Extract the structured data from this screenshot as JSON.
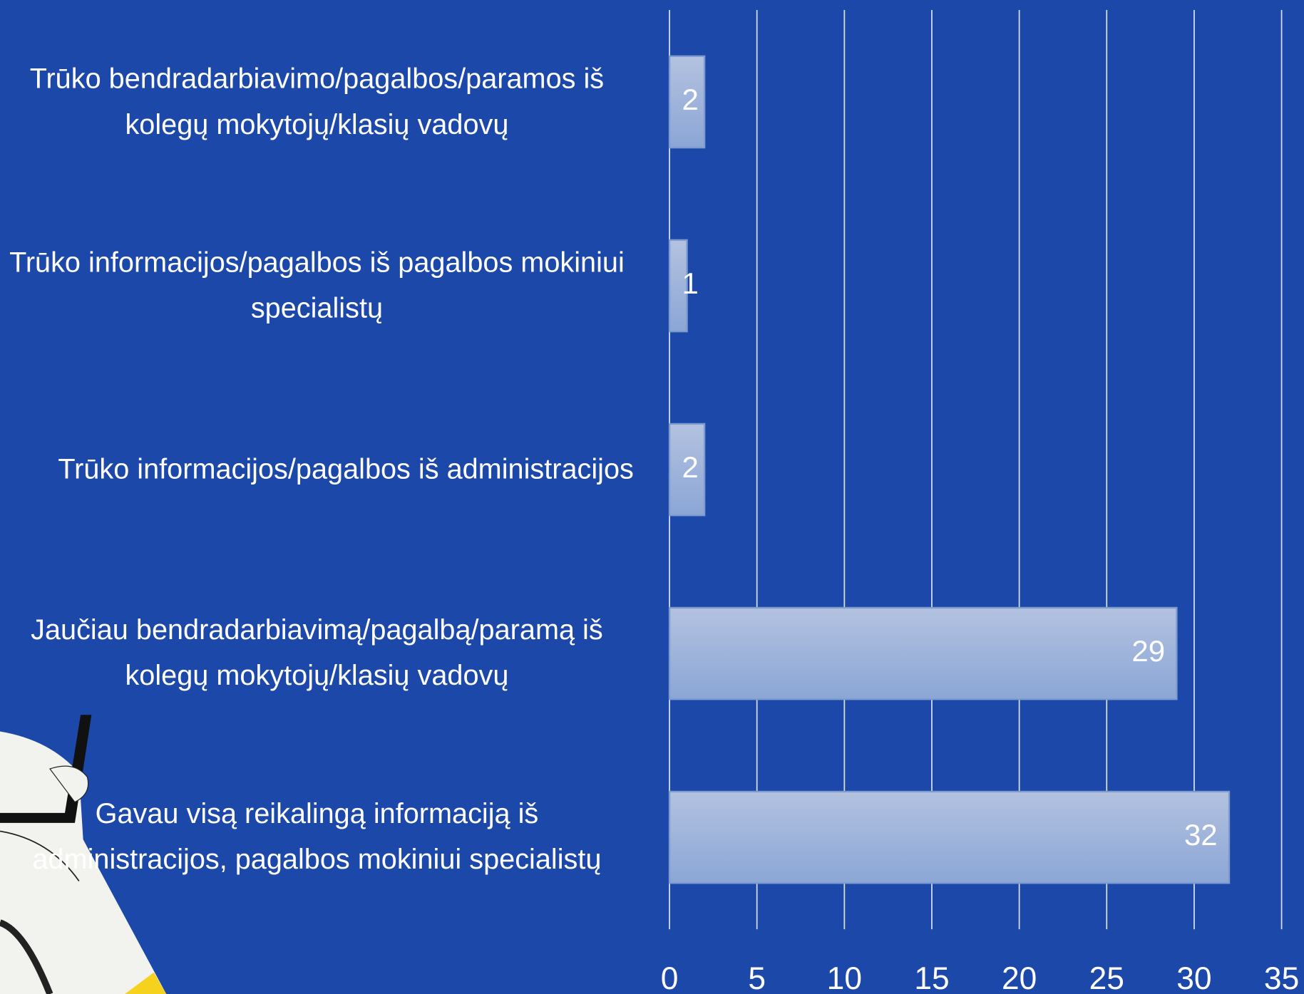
{
  "chart_data": {
    "type": "bar",
    "orientation": "horizontal",
    "categories": [
      "Trūko bendradarbiavimo/pagalbos/paramos iš kolegų mokytojų/klasių vadovų",
      "Trūko informacijos/pagalbos iš pagalbos mokiniui specialistų",
      "Trūko informacijos/pagalbos iš administracijos",
      "Jaučiau bendradarbiavimą/pagalbą/paramą iš kolegų mokytojų/klasių vadovų",
      "Gavau visą reikalingą informaciją iš administracijos, pagalbos mokiniui specialistų"
    ],
    "values": [
      2,
      1,
      2,
      29,
      32
    ],
    "color": "#9fb3db",
    "xlim": [
      0,
      35
    ],
    "xticks": [
      0,
      5,
      10,
      15,
      20,
      25,
      30,
      35
    ],
    "grid": true
  }
}
